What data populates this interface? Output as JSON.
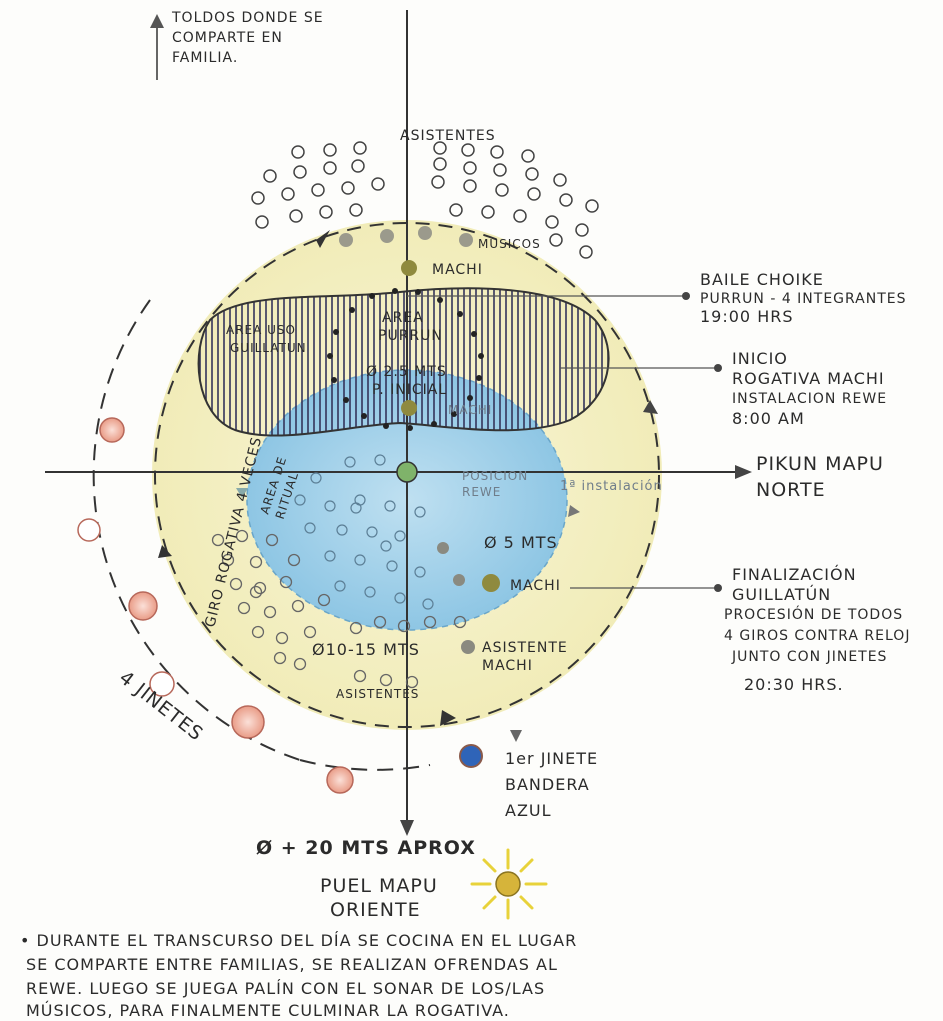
{
  "colors": {
    "yellow_ring": "#f3efc0",
    "blue_area": "#a9d4ea",
    "hatch": "#33335a",
    "machi_dot": "#8f8a3e",
    "musician_dot": "#9b9a8c",
    "rider_pink": "#f0b7a6",
    "flag_blue": "#2f64b8",
    "sun": "#e1c33a"
  },
  "labels": {
    "toldos": [
      "TOLDOS DONDE SE",
      "COMPARTE EN",
      "FAMILIA."
    ],
    "asistentes_top": "ASISTENTES",
    "musicos": "MUSICOS",
    "machi_top": "MACHI",
    "area_purrun": [
      "AREA",
      "PURRUN"
    ],
    "area_uso_guillatun": [
      "AREA USO",
      "GUILLATUN"
    ],
    "diam_25": [
      "Ø 2.5 MTS",
      "P. INICIAL"
    ],
    "machi_center": "MACHI",
    "posicion_rewe": [
      "POSICION",
      "REWE"
    ],
    "primera_instalacion": "1ª instalación",
    "diam_5": "Ø 5 MTS",
    "machi_low": "MACHI",
    "asistente_machi": [
      "ASISTENTE",
      "MACHI"
    ],
    "diam_10_15": "Ø10-15 MTS",
    "asistentes_bottom": "ASISTENTES",
    "area_rituales": [
      "AREA DE",
      "RITUAL"
    ],
    "giro_rogativa": "GIRO ROGATIVA 4 VECES",
    "jinetes": "4 JINETES",
    "primer_jinete": [
      "1er JINETE",
      "BANDERA",
      "AZUL"
    ],
    "diam_20": "Ø + 20 MTS APROX",
    "pikun": [
      "PIKUN MAPU",
      "NORTE"
    ],
    "puel": [
      "PUEL MAPU",
      "ORIENTE"
    ]
  },
  "annotations": {
    "baile": [
      "BAILE CHOIKE",
      "PURRUN - 4 INTEGRANTES",
      "19:00 HRS"
    ],
    "inicio": [
      "INICIO",
      "ROGATIVA MACHI",
      "INSTALACION REWE",
      "8:00 AM"
    ],
    "finalizacion": [
      "FINALIZACIÓN",
      "GUILLATÚN",
      "PROCESIÓN DE TODOS",
      "4 GIROS CONTRA RELOJ",
      "JUNTO CON JINETES",
      "20:30 HRS."
    ]
  },
  "footer": [
    "• DURANTE EL TRANSCURSO DEL DÍA SE COCINA EN EL LUGAR",
    "SE COMPARTE ENTRE FAMILIAS, SE REALIZAN OFRENDAS AL",
    "REWE. LUEGO SE JUEGA PALÍN CON EL SONAR DE LOS/LAS",
    "MÚSICOS, PARA FINALMENTE CULMINAR LA ROGATIVA."
  ]
}
